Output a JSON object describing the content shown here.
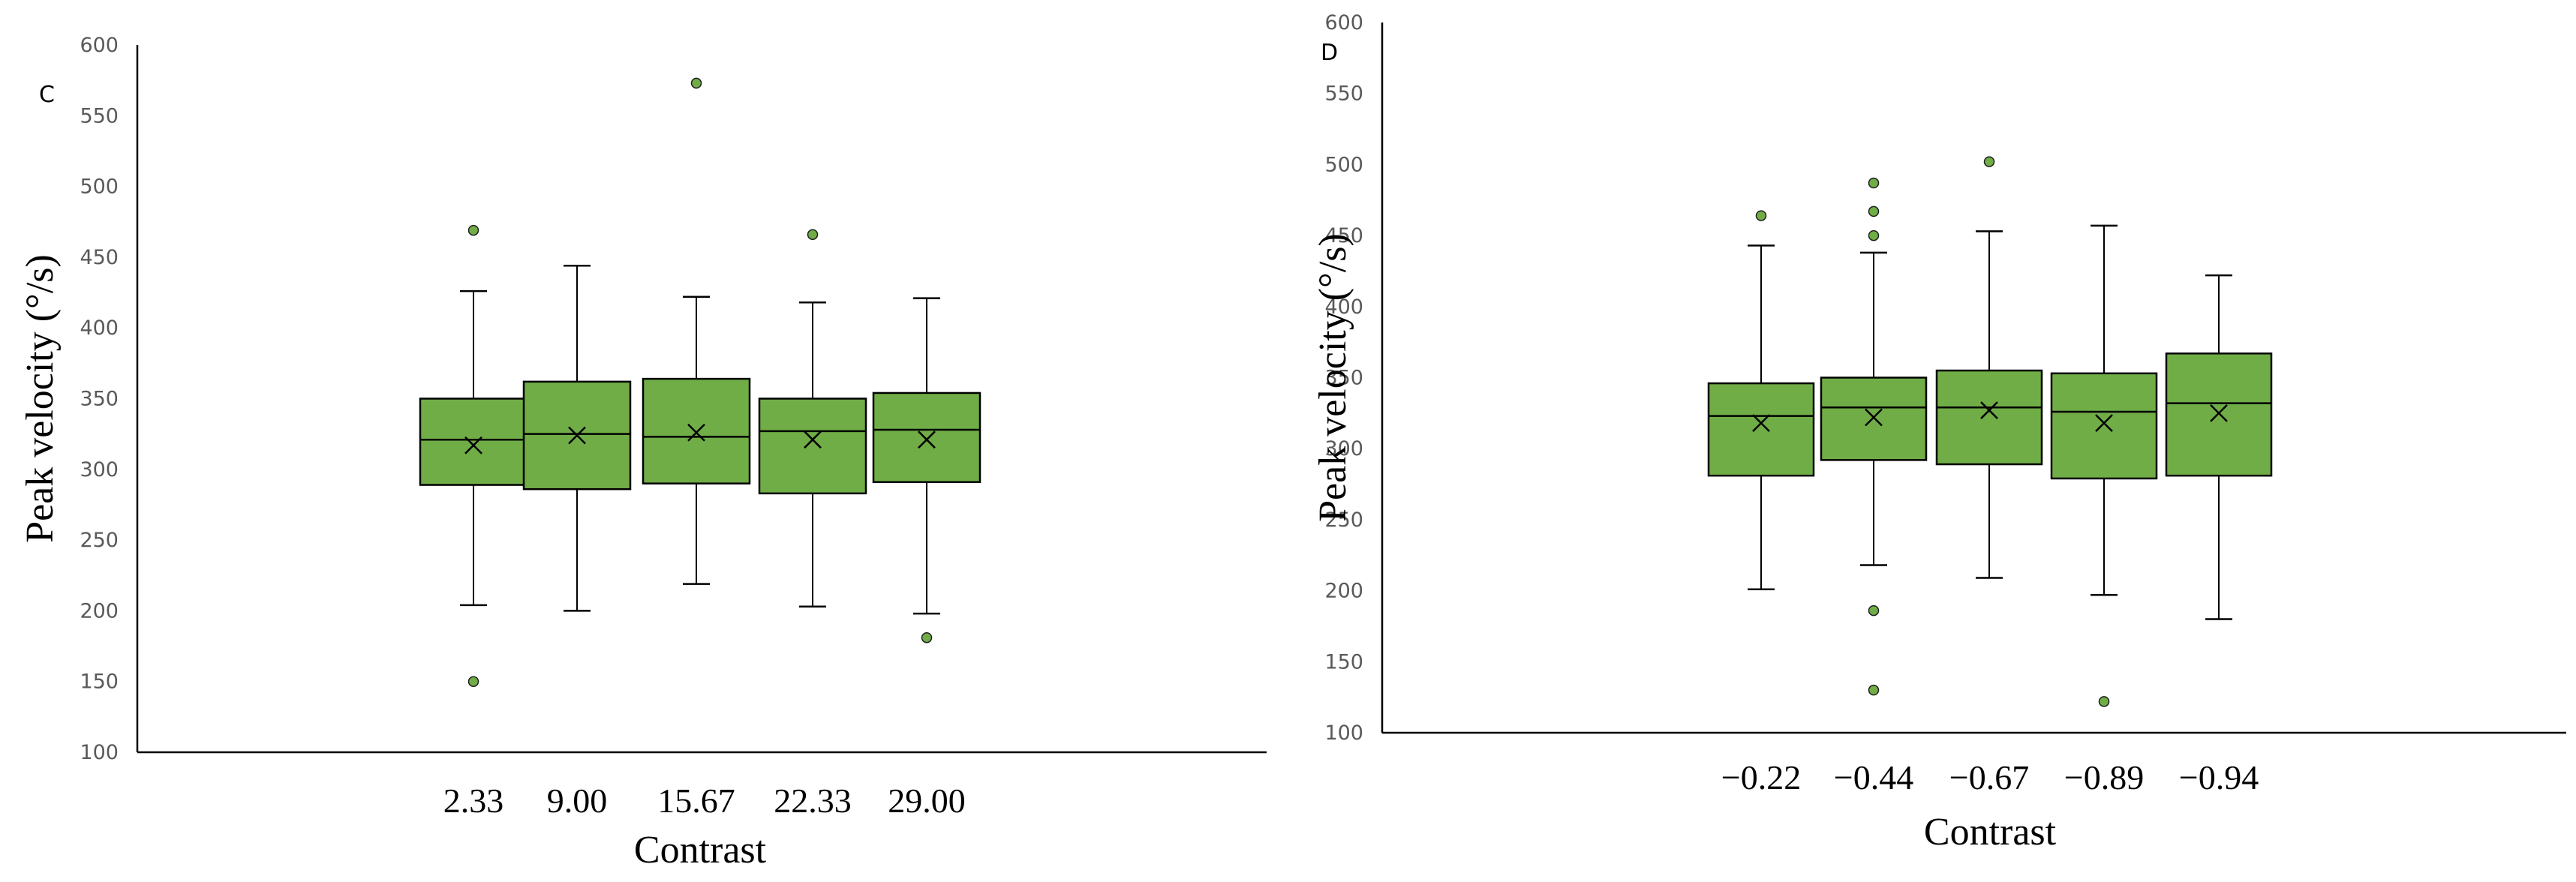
{
  "chart_data": [
    {
      "type": "box",
      "panel_label": "C",
      "xlabel": "Contrast",
      "ylabel": "Peak velocity (°/s)",
      "ylim": [
        100,
        600
      ],
      "yticks": [
        100,
        150,
        200,
        250,
        300,
        350,
        400,
        450,
        500,
        550,
        600
      ],
      "grid": false,
      "legend": "none",
      "box_color": "#70AD47",
      "outlier_color": "#70AD47",
      "categories": [
        "2.33",
        "9.00",
        "15.67",
        "22.33",
        "29.00"
      ],
      "boxes": [
        {
          "whisker_low": 204,
          "q1": 289,
          "median": 321,
          "q3": 350,
          "whisker_high": 426,
          "mean": 317,
          "outliers": [
            469,
            150
          ]
        },
        {
          "whisker_low": 200,
          "q1": 286,
          "median": 325,
          "q3": 362,
          "whisker_high": 444,
          "mean": 324,
          "outliers": []
        },
        {
          "whisker_low": 219,
          "q1": 290,
          "median": 323,
          "q3": 364,
          "whisker_high": 422,
          "mean": 326,
          "outliers": [
            573
          ]
        },
        {
          "whisker_low": 203,
          "q1": 283,
          "median": 327,
          "q3": 350,
          "whisker_high": 418,
          "mean": 321,
          "outliers": [
            466
          ]
        },
        {
          "whisker_low": 198,
          "q1": 291,
          "median": 328,
          "q3": 354,
          "whisker_high": 421,
          "mean": 321,
          "outliers": [
            181
          ]
        }
      ]
    },
    {
      "type": "box",
      "panel_label": "D",
      "xlabel": "Contrast",
      "ylabel": "Peak velocity (°/s)",
      "ylim": [
        100,
        600
      ],
      "yticks": [
        100,
        150,
        200,
        250,
        300,
        350,
        400,
        450,
        500,
        550,
        600
      ],
      "grid": false,
      "legend": "none",
      "box_color": "#70AD47",
      "outlier_color": "#70AD47",
      "categories": [
        "−0.22",
        "−0.44",
        "−0.67",
        "−0.89",
        "−0.94"
      ],
      "boxes": [
        {
          "whisker_low": 201,
          "q1": 281,
          "median": 323,
          "q3": 346,
          "whisker_high": 443,
          "mean": 318,
          "outliers": [
            464
          ]
        },
        {
          "whisker_low": 218,
          "q1": 292,
          "median": 329,
          "q3": 350,
          "whisker_high": 438,
          "mean": 322,
          "outliers": [
            487,
            467,
            450,
            186,
            130
          ]
        },
        {
          "whisker_low": 209,
          "q1": 289,
          "median": 329,
          "q3": 355,
          "whisker_high": 453,
          "mean": 327,
          "outliers": [
            502
          ]
        },
        {
          "whisker_low": 197,
          "q1": 279,
          "median": 326,
          "q3": 353,
          "whisker_high": 457,
          "mean": 318,
          "outliers": [
            122
          ]
        },
        {
          "whisker_low": 180,
          "q1": 281,
          "median": 332,
          "q3": 367,
          "whisker_high": 422,
          "mean": 325,
          "outliers": []
        }
      ]
    }
  ]
}
